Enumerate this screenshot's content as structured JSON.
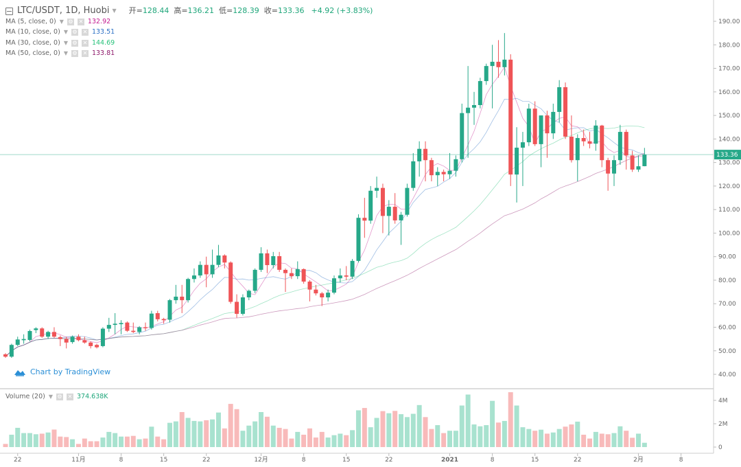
{
  "header": {
    "symbol": "LTC/USDT, 1D, Huobi",
    "open_label": "开=",
    "open": "128.44",
    "high_label": "高=",
    "high": "136.21",
    "low_label": "低=",
    "low": "128.39",
    "close_label": "收=",
    "close": "133.36",
    "change": "+4.92 (+3.83%)"
  },
  "indicators": [
    {
      "label": "MA (5, close, 0)",
      "value": "132.92",
      "color": "#c2188e"
    },
    {
      "label": "MA (10, close, 0)",
      "value": "133.51",
      "color": "#2a6fc4"
    },
    {
      "label": "MA (30, close, 0)",
      "value": "144.69",
      "color": "#27c27a"
    },
    {
      "label": "MA (50, close, 0)",
      "value": "133.81",
      "color": "#8e1a6b"
    }
  ],
  "volume_legend": {
    "label": "Volume (20)",
    "value": "374.638K"
  },
  "watermark": "Chart by TradingView",
  "colors": {
    "up": "#26a889",
    "down": "#ef5457",
    "vol_up": "#a8e2cf",
    "vol_down": "#f8baba",
    "price_line": "#9fd9c9"
  },
  "chart_data": {
    "type": "candlestick",
    "ylim": [
      35,
      195
    ],
    "y_ticks": [
      "40.00",
      "50.00",
      "60.00",
      "70.00",
      "80.00",
      "90.00",
      "100.00",
      "110.00",
      "120.00",
      "130.00",
      "140.00",
      "150.00",
      "160.00",
      "170.00",
      "180.00",
      "190.00"
    ],
    "volume_ticks": [
      "0",
      "2M",
      "4M"
    ],
    "last_price": "133.36",
    "date_range": [
      "2020-10-20",
      "2021-02-02"
    ],
    "x_ticks": [
      {
        "index": 2,
        "label": "22"
      },
      {
        "index": 12,
        "label": "11月"
      },
      {
        "index": 19,
        "label": "8"
      },
      {
        "index": 26,
        "label": "15"
      },
      {
        "index": 33,
        "label": "22"
      },
      {
        "index": 42,
        "label": "12月"
      },
      {
        "index": 49,
        "label": "8"
      },
      {
        "index": 56,
        "label": "15"
      },
      {
        "index": 63,
        "label": "22"
      },
      {
        "index": 73,
        "label": "2021"
      },
      {
        "index": 80,
        "label": "8"
      },
      {
        "index": 87,
        "label": "15"
      },
      {
        "index": 94,
        "label": "22"
      },
      {
        "index": 104,
        "label": "2月"
      },
      {
        "index": 111,
        "label": "8"
      }
    ],
    "ohlc": [
      [
        48.5,
        49,
        47,
        47.5
      ],
      [
        47.5,
        53,
        47,
        52.5
      ],
      [
        52.5,
        56,
        52,
        54.8
      ],
      [
        54.5,
        57,
        53,
        55
      ],
      [
        54.6,
        59,
        54,
        58.4
      ],
      [
        58.8,
        60,
        57.5,
        59.5
      ],
      [
        59.5,
        60,
        55.5,
        56
      ],
      [
        56,
        58.5,
        55,
        58
      ],
      [
        58,
        60,
        55.5,
        56
      ],
      [
        55.8,
        56.5,
        52,
        55
      ],
      [
        55,
        56,
        51,
        53.5
      ],
      [
        53.7,
        56.5,
        53,
        56
      ],
      [
        56,
        57,
        54,
        54.5
      ],
      [
        54.5,
        56,
        53,
        53.5
      ],
      [
        53.5,
        54,
        51,
        52
      ],
      [
        52.5,
        53,
        51,
        51.5
      ],
      [
        52,
        60,
        51.5,
        59.4
      ],
      [
        59.4,
        64,
        58,
        61
      ],
      [
        61,
        66,
        57,
        61.5
      ],
      [
        61.3,
        63,
        57,
        61.8
      ],
      [
        62,
        62.5,
        58,
        58.5
      ],
      [
        58.5,
        62,
        57.5,
        58
      ],
      [
        58,
        60.5,
        57,
        60
      ],
      [
        60,
        62,
        58.5,
        59.6
      ],
      [
        59.7,
        67,
        59,
        65.8
      ],
      [
        66,
        67,
        62.5,
        63.4
      ],
      [
        63.5,
        64,
        61.5,
        63
      ],
      [
        63.2,
        72,
        62,
        71.5
      ],
      [
        71.5,
        78,
        70,
        73
      ],
      [
        73,
        78,
        66,
        71.5
      ],
      [
        71.5,
        81,
        70.5,
        80.5
      ],
      [
        80.5,
        85,
        79,
        82
      ],
      [
        82,
        88,
        81,
        86.5
      ],
      [
        86.5,
        90,
        77,
        82.5
      ],
      [
        82.5,
        93,
        81,
        86.5
      ],
      [
        86.5,
        95,
        85.5,
        90.5
      ],
      [
        90.5,
        91,
        85,
        87.5
      ],
      [
        87.5,
        88,
        70,
        70.8
      ],
      [
        70.8,
        74,
        64,
        65.7
      ],
      [
        65.7,
        74,
        65,
        72.7
      ],
      [
        72.7,
        76,
        71.5,
        75.5
      ],
      [
        75.5,
        85,
        74.5,
        84.4
      ],
      [
        84.4,
        94,
        83.5,
        91.4
      ],
      [
        91.4,
        93,
        83,
        86.4
      ],
      [
        86.4,
        92,
        85,
        90.2
      ],
      [
        90.2,
        92,
        83.5,
        84.4
      ],
      [
        84.4,
        85,
        75,
        83
      ],
      [
        83,
        85,
        80.5,
        81.7
      ],
      [
        81.7,
        88,
        80.5,
        84.7
      ],
      [
        84.7,
        85,
        78.5,
        79.4
      ],
      [
        79.4,
        80,
        71,
        76
      ],
      [
        76,
        78,
        73.5,
        74.4
      ],
      [
        74.4,
        75,
        69,
        72.7
      ],
      [
        72.7,
        76,
        71,
        74.7
      ],
      [
        74.7,
        82,
        74,
        80.8
      ],
      [
        80.8,
        85,
        79,
        82
      ],
      [
        82,
        86,
        80,
        81.5
      ],
      [
        81.5,
        89,
        80.5,
        88.2
      ],
      [
        88.2,
        108,
        87.5,
        106.5
      ],
      [
        106.5,
        115,
        98,
        105.3
      ],
      [
        105.3,
        120,
        104,
        118
      ],
      [
        118,
        124,
        115,
        119.2
      ],
      [
        119.2,
        121,
        100,
        107.3
      ],
      [
        107.3,
        114,
        99,
        111.2
      ],
      [
        111.2,
        117,
        104,
        105.4
      ],
      [
        105.4,
        109,
        95,
        107.8
      ],
      [
        107.8,
        121,
        107,
        119.2
      ],
      [
        119.2,
        134,
        118,
        130.5
      ],
      [
        130.5,
        139,
        124,
        135.8
      ],
      [
        135.8,
        139,
        122,
        131
      ],
      [
        131,
        132,
        122,
        124.6
      ],
      [
        124.6,
        128,
        120,
        126
      ],
      [
        126,
        127,
        122,
        125
      ],
      [
        125,
        134,
        123,
        126.5
      ],
      [
        126.5,
        133,
        124,
        131.4
      ],
      [
        131.4,
        155,
        130,
        151
      ],
      [
        151,
        171,
        132,
        153.3
      ],
      [
        153.3,
        160,
        146,
        154.4
      ],
      [
        154.4,
        166,
        153,
        164.6
      ],
      [
        164.6,
        172,
        163,
        171
      ],
      [
        171,
        180,
        153,
        172.8
      ],
      [
        172.8,
        182,
        166,
        170.5
      ],
      [
        170.5,
        185,
        167,
        173.7
      ],
      [
        173.7,
        176,
        120,
        124.9
      ],
      [
        124.9,
        145,
        113,
        136.3
      ],
      [
        136.3,
        143,
        120,
        138.6
      ],
      [
        138.6,
        155,
        137,
        152.9
      ],
      [
        152.9,
        156,
        137,
        137.8
      ],
      [
        137.8,
        150,
        128,
        150
      ],
      [
        150,
        152,
        132,
        142.4
      ],
      [
        142.4,
        155,
        140,
        151.5
      ],
      [
        151.5,
        165,
        147,
        162
      ],
      [
        162,
        164,
        140,
        141
      ],
      [
        141,
        150,
        130,
        131
      ],
      [
        131,
        142,
        122,
        140.4
      ],
      [
        140.4,
        144,
        137,
        139
      ],
      [
        139,
        143,
        136,
        138
      ],
      [
        138,
        148,
        135,
        145.7
      ],
      [
        145.7,
        146,
        128,
        131
      ],
      [
        131,
        132,
        118,
        125.3
      ],
      [
        125.3,
        133,
        120,
        131
      ],
      [
        131,
        146,
        129,
        143
      ],
      [
        143,
        144,
        127,
        133
      ],
      [
        133,
        135,
        126,
        127
      ],
      [
        127,
        133,
        126,
        128.4
      ],
      [
        128.44,
        136.21,
        128.39,
        133.36
      ]
    ],
    "volume_millions": [
      0.27,
      1.06,
      1.65,
      1.2,
      1.2,
      1.1,
      1.15,
      1.25,
      1.5,
      0.9,
      0.86,
      0.67,
      0.27,
      0.73,
      0.5,
      0.5,
      0.82,
      1.3,
      1.2,
      0.9,
      0.9,
      0.96,
      0.67,
      0.73,
      1.75,
      0.9,
      0.67,
      2.08,
      2.2,
      3.0,
      2.5,
      2.24,
      2.2,
      2.3,
      2.37,
      2.96,
      1.6,
      3.7,
      3.25,
      1.4,
      1.84,
      2.2,
      3.0,
      2.6,
      1.84,
      1.65,
      1.55,
      0.73,
      1.3,
      1.06,
      1.6,
      0.82,
      1.3,
      0.82,
      1.02,
      1.15,
      1.02,
      1.45,
      3.15,
      3.35,
      1.7,
      2.5,
      3.08,
      2.9,
      3.1,
      2.82,
      2.57,
      2.85,
      3.6,
      2.57,
      1.55,
      1.88,
      1.2,
      1.4,
      1.4,
      3.56,
      4.5,
      1.94,
      1.78,
      1.88,
      3.96,
      2.1,
      2.24,
      4.7,
      3.56,
      1.7,
      1.55,
      1.4,
      1.49,
      1.15,
      1.25,
      1.55,
      1.75,
      1.94,
      2.18,
      1.06,
      0.73,
      1.3,
      1.15,
      1.1,
      1.2,
      1.78,
      1.4,
      0.8,
      1.15,
      0.37
    ],
    "moving_averages": [
      5,
      10,
      30,
      50
    ]
  }
}
